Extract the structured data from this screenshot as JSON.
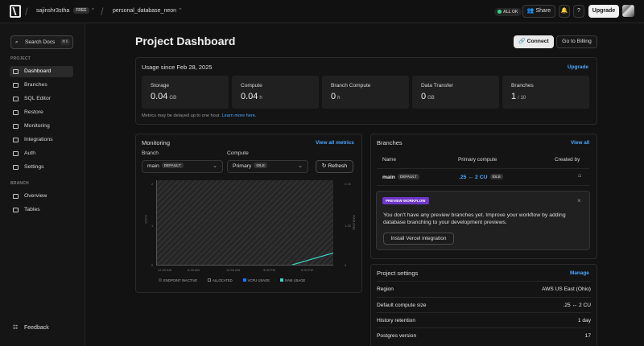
{
  "topbar": {
    "user": "sajinshr3stha",
    "plan": "FREE",
    "project": "personal_database_neon",
    "status": "ALL OK",
    "share_label": "Share",
    "upgrade_label": "Upgrade"
  },
  "sidebar": {
    "search_label": "Search Docs",
    "search_shortcut": "⌘K",
    "project_section": "PROJECT",
    "project_items": [
      "Dashboard",
      "Branches",
      "SQL Editor",
      "Restore",
      "Monitoring",
      "Integrations",
      "Auth",
      "Settings"
    ],
    "branch_section": "BRANCH",
    "branch_items": [
      "Overview",
      "Tables"
    ],
    "feedback": "Feedback"
  },
  "header": {
    "title": "Project Dashboard",
    "connect_label": "Connect",
    "billing_label": "Go to Billing"
  },
  "usage": {
    "title": "Usage since Feb 28, 2025",
    "upgrade_link": "Upgrade",
    "metrics": [
      {
        "label": "Storage",
        "value": "0.04",
        "unit": "GB"
      },
      {
        "label": "Compute",
        "value": "0.04",
        "unit": "h"
      },
      {
        "label": "Branch Compute",
        "value": "0",
        "unit": "h"
      },
      {
        "label": "Data Transfer",
        "value": "0",
        "unit": "GB"
      },
      {
        "label": "Branches",
        "value": "1",
        "unit": "/ 10"
      }
    ],
    "note": "Metrics may be delayed up to one hour.",
    "note_link": "Learn more here."
  },
  "monitoring": {
    "title": "Monitoring",
    "view_all": "View all metrics",
    "branch_label": "Branch",
    "branch_value": "main",
    "branch_badge": "DEFAULT",
    "compute_label": "Compute",
    "compute_value": "Primary",
    "compute_badge": "IDLE",
    "refresh_label": "Refresh"
  },
  "chart_data": {
    "type": "area",
    "title": "",
    "xlabel": "",
    "ylabel_left": "vCPU",
    "ylabel_right": "RAM (GB)",
    "x": [
      "12:33 AM",
      "6:33 AM",
      "10:33 AM",
      "3:33 PM",
      "6:33 PM"
    ],
    "y_left_ticks": [
      "0",
      "1",
      "2"
    ],
    "y_right_ticks": [
      "0",
      "1.25",
      "2.15"
    ],
    "series": [
      {
        "name": "ENDPOINT INACTIVE",
        "values": [
          1,
          1,
          1,
          1,
          1
        ]
      },
      {
        "name": "ALLOCATED",
        "values": [
          0,
          0,
          0,
          0,
          0
        ]
      },
      {
        "name": "VCPU USAGE",
        "values": [
          0,
          0,
          0,
          0,
          0
        ]
      },
      {
        "name": "RAM USAGE",
        "values": [
          0,
          0,
          0,
          0,
          0.15
        ]
      }
    ],
    "colors": {
      "endpoint_inactive": "#3a3a3a",
      "allocated": "#111111",
      "vcpu_usage": "#1f74ff",
      "ram_usage": "#38d5c5"
    }
  },
  "branches": {
    "title": "Branches",
    "view_all": "View all",
    "headers": [
      "Name",
      "Primary compute",
      "Created by"
    ],
    "rows": [
      {
        "name": "main",
        "badge": "DEFAULT",
        "compute": ".25 ↔ 2 CU",
        "state": "IDLE"
      }
    ]
  },
  "promo": {
    "badge": "PREVIEW WORKFLOW",
    "text": "You don't have any preview branches yet. Improve your workflow by adding database branching to your development previews.",
    "button": "Install Vercel integration"
  },
  "settings": {
    "title": "Project settings",
    "manage": "Manage",
    "rows": [
      {
        "label": "Region",
        "value": "AWS US East (Ohio)"
      },
      {
        "label": "Default compute size",
        "value": ".25 ↔ 2 CU"
      },
      {
        "label": "History retention",
        "value": "1 day"
      },
      {
        "label": "Postgres version",
        "value": "17"
      }
    ]
  }
}
